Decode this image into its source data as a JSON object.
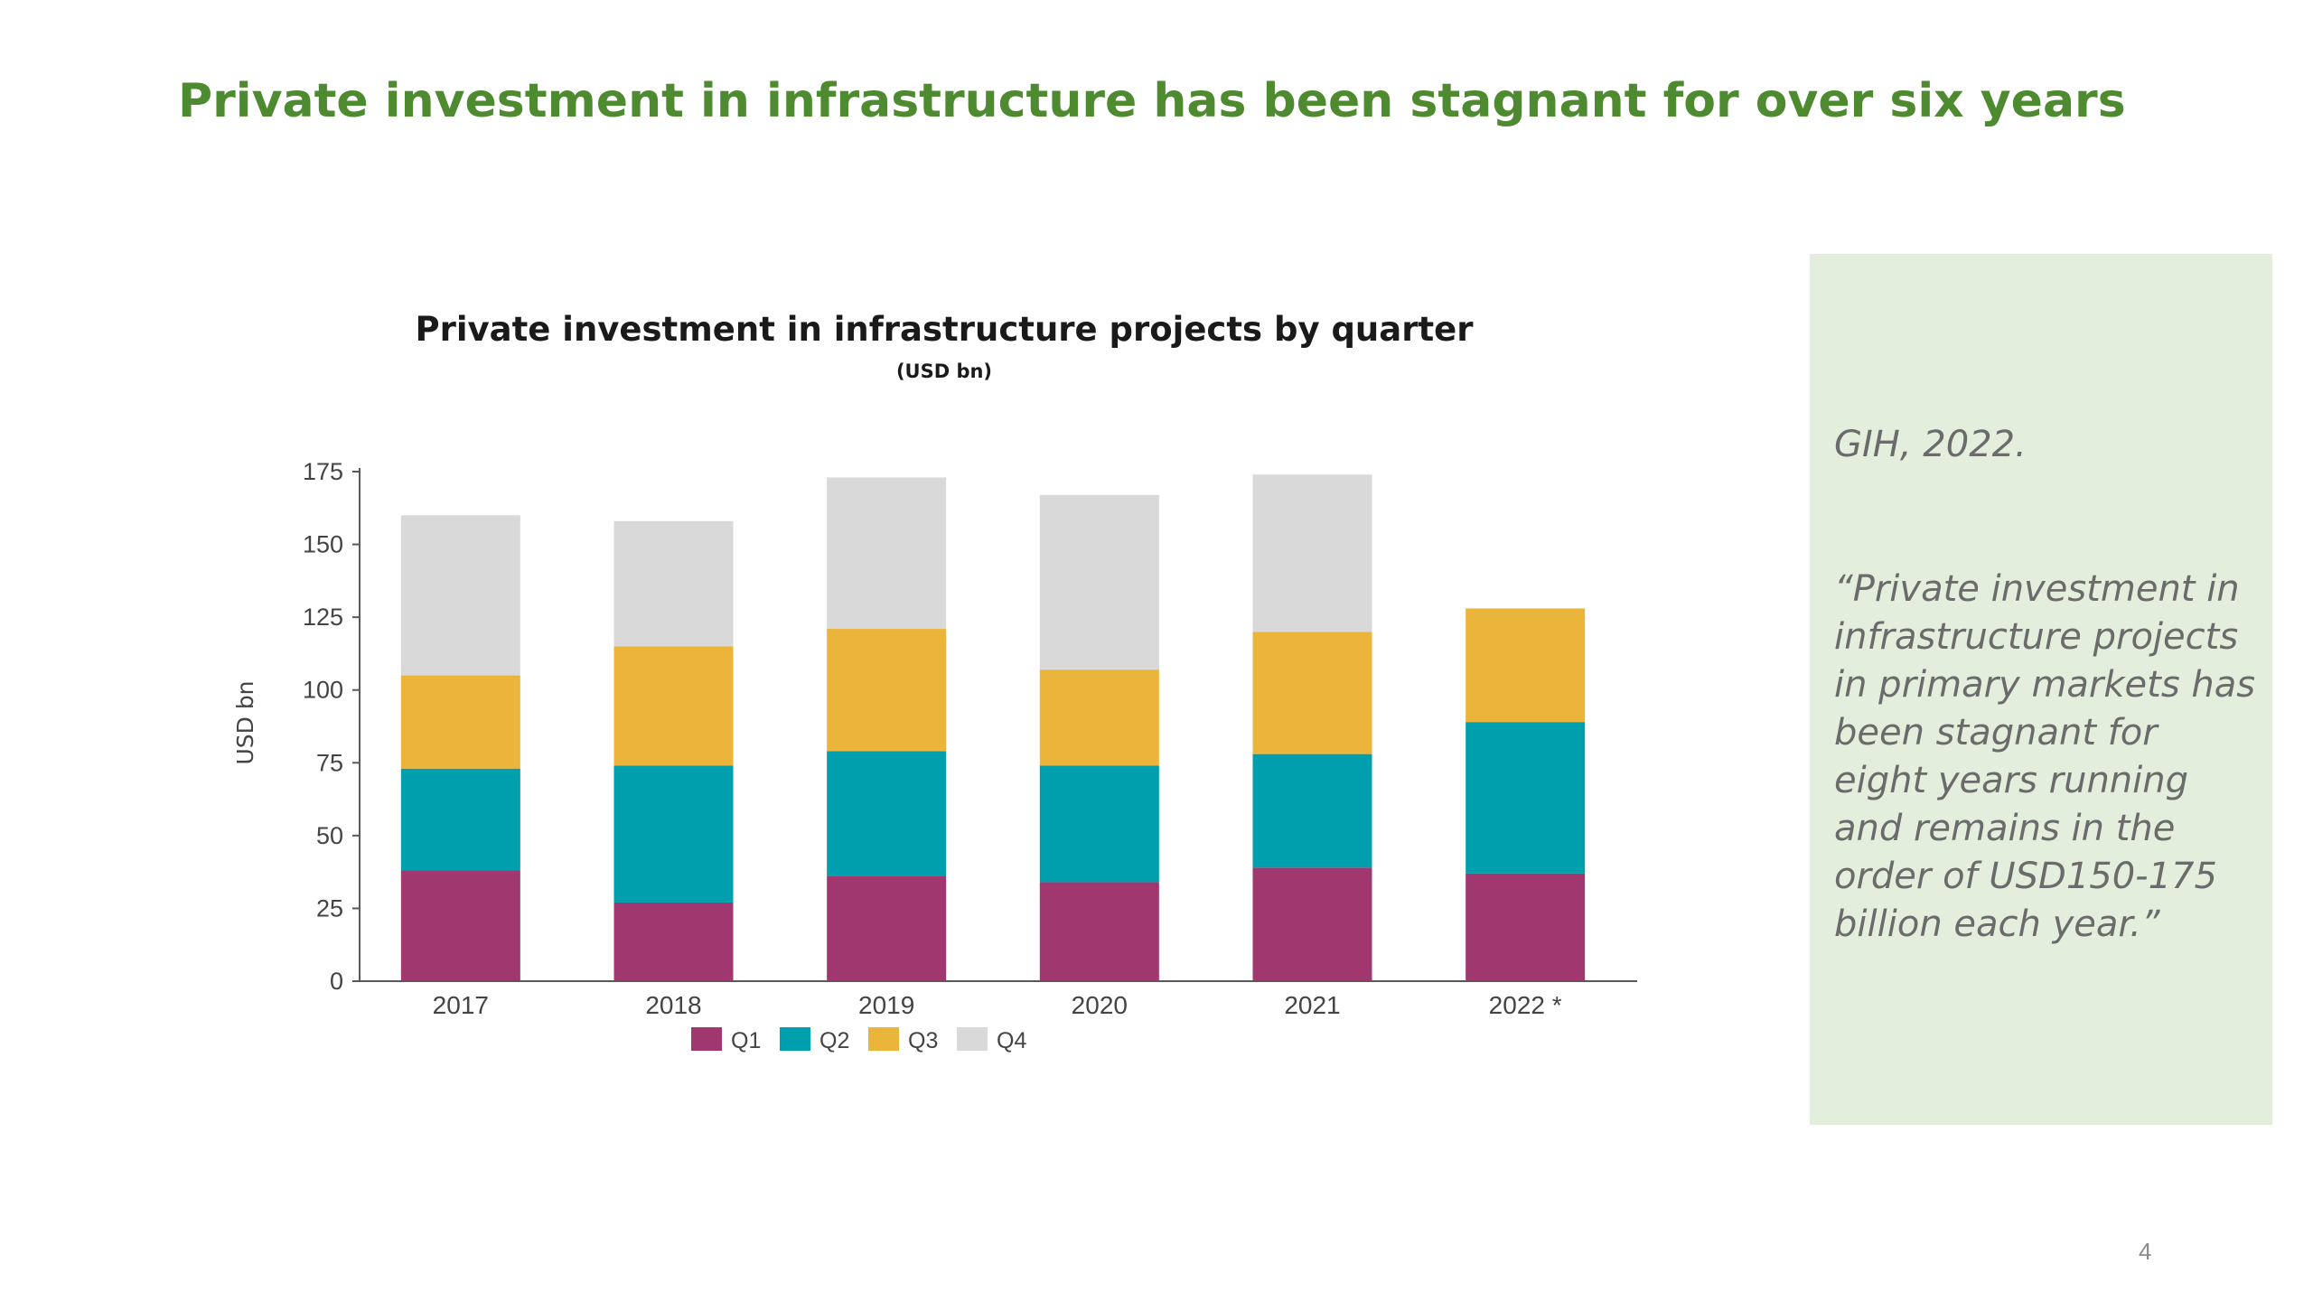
{
  "slide": {
    "title": "Private investment in infrastructure has been stagnant for over six years",
    "page_number": "4",
    "title_color": "#4e8a2f"
  },
  "quote": {
    "source": "GIH, 2022.",
    "text": "“Private investment in infrastructure projects in primary markets has been stagnant for eight years running and remains in the order of USD150-175 billion each year.”",
    "background": "#e3efdc"
  },
  "chart_data": {
    "type": "bar",
    "stacked": true,
    "title": "Private investment in infrastructure projects by quarter",
    "subtitle": "(USD bn)",
    "xlabel": "",
    "ylabel": "USD bn",
    "ylim": [
      0,
      175
    ],
    "yticks": [
      0,
      25,
      50,
      75,
      100,
      125,
      150,
      175
    ],
    "categories": [
      "2017",
      "2018",
      "2019",
      "2020",
      "2021",
      "2022 *"
    ],
    "legend_position": "bottom",
    "grid": false,
    "series": [
      {
        "name": "Q1",
        "color": "#a0376f",
        "values": [
          38,
          27,
          36,
          34,
          39,
          37
        ]
      },
      {
        "name": "Q2",
        "color": "#009fae",
        "values": [
          35,
          47,
          43,
          40,
          39,
          52
        ]
      },
      {
        "name": "Q3",
        "color": "#ebb53c",
        "values": [
          32,
          41,
          42,
          33,
          42,
          39
        ]
      },
      {
        "name": "Q4",
        "color": "#d9d9d9",
        "values": [
          55,
          43,
          52,
          60,
          54,
          0
        ]
      }
    ]
  }
}
